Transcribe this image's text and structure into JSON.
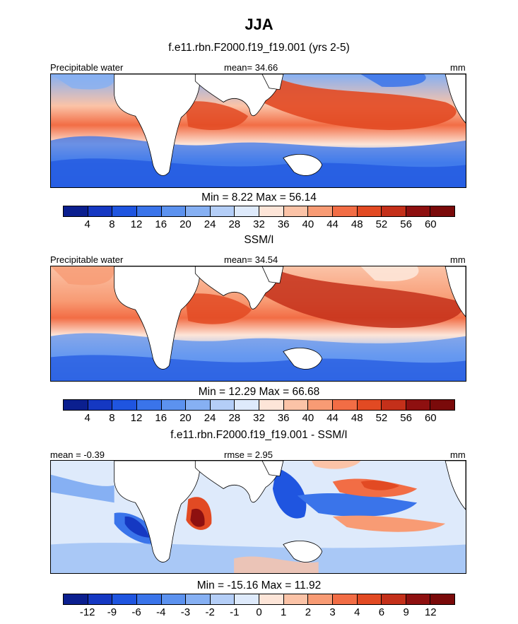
{
  "figure": {
    "title": "JJA",
    "subtitle_model": "f.e11.rbn.F2000.f19_f19.001 (yrs 2-5)"
  },
  "panels": [
    {
      "left_label": "Precipitable water",
      "center_label": "mean=  34.66",
      "right_label": "mm",
      "minmax": "Min =   8.22 Max =  56.14",
      "below_title": "SSM/I"
    },
    {
      "left_label": "Precipitable water",
      "center_label": "mean=  34.54",
      "right_label": "mm",
      "minmax": "Min =  12.29 Max =  66.68",
      "below_title": "f.e11.rbn.F2000.f19_f19.001 - SSM/I"
    },
    {
      "left_label": "mean =  -0.39",
      "center_label": "rmse =   2.95",
      "right_label": "mm",
      "minmax": "Min = -15.16 Max =  11.92"
    }
  ],
  "colorbars": {
    "pw": {
      "ticks": [
        "4",
        "8",
        "12",
        "16",
        "20",
        "24",
        "28",
        "32",
        "36",
        "40",
        "44",
        "48",
        "52",
        "56",
        "60"
      ],
      "colors": [
        "#0b1f8f",
        "#1538c2",
        "#1f55e0",
        "#3a74ea",
        "#5c92ef",
        "#86b0f3",
        "#b4cef7",
        "#deeafb",
        "#fde5d8",
        "#fbc3a7",
        "#f89b74",
        "#f26d45",
        "#e24a23",
        "#c4301a",
        "#8e1010",
        "#7a0a0a"
      ]
    },
    "diff": {
      "ticks": [
        "-12",
        "-9",
        "-6",
        "-4",
        "-3",
        "-2",
        "-1",
        "0",
        "1",
        "2",
        "3",
        "4",
        "6",
        "9",
        "12"
      ],
      "colors": [
        "#0b1f8f",
        "#1538c2",
        "#1f55e0",
        "#3a74ea",
        "#5c92ef",
        "#86b0f3",
        "#b4cef7",
        "#deeafb",
        "#fde5d8",
        "#fbc3a7",
        "#f89b74",
        "#f26d45",
        "#e24a23",
        "#c4301a",
        "#8e1010",
        "#7a0a0a"
      ]
    }
  }
}
